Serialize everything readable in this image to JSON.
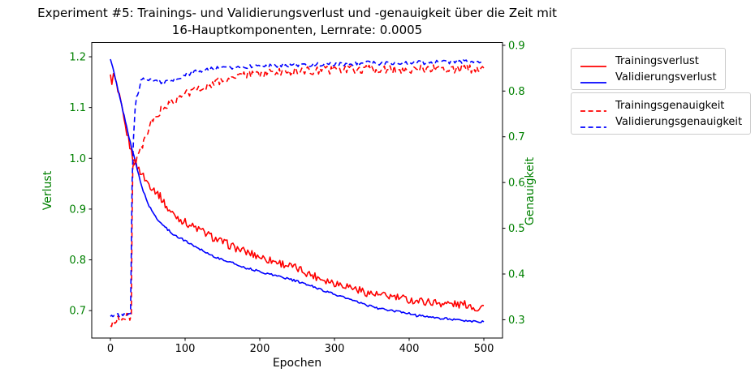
{
  "title": "Experiment #5: Trainings- und Validierungsverlust und -genauigkeit über die Zeit mit\n16-Hauptkomponenten, Lernrate: 0.0005",
  "chart_data": {
    "type": "line",
    "title": "Experiment #5: Trainings- und Validierungsverlust und -genauigkeit über die Zeit mit 16-Hauptkomponenten, Lernrate: 0.0005",
    "xlabel": "Epochen",
    "ylabel_left": "Verlust",
    "ylabel_right": "Genauigkeit",
    "axis_label_color": "#008000",
    "tick_color_x": "#000000",
    "legend_position": "outside-right",
    "grid": false,
    "x_ticks": [
      0,
      100,
      200,
      300,
      400,
      500
    ],
    "loss_ticks": [
      "1.2",
      "1.1",
      "1.0",
      "0.9",
      "0.8",
      "0.7"
    ],
    "acc_ticks": [
      "0.9",
      "0.8",
      "0.7",
      "0.6",
      "0.5",
      "0.4",
      "0.3"
    ],
    "xlim": [
      -25,
      525
    ],
    "loss_lim": [
      0.646,
      1.228
    ],
    "acc_lim": [
      0.26,
      0.906
    ],
    "series": [
      {
        "name": "Trainingsverlust",
        "color": "#ff0000",
        "dash": false,
        "axis": "loss",
        "noise": 0.008,
        "points": [
          [
            0,
            1.16
          ],
          [
            2,
            1.152
          ],
          [
            4,
            1.162
          ],
          [
            6,
            1.158
          ],
          [
            8,
            1.145
          ],
          [
            10,
            1.13
          ],
          [
            12,
            1.12
          ],
          [
            15,
            1.1
          ],
          [
            18,
            1.075
          ],
          [
            22,
            1.05
          ],
          [
            26,
            1.025
          ],
          [
            30,
            1.0
          ],
          [
            34,
            0.988
          ],
          [
            38,
            0.979
          ],
          [
            42,
            0.97
          ],
          [
            46,
            0.96
          ],
          [
            50,
            0.952
          ],
          [
            55,
            0.944
          ],
          [
            60,
            0.937
          ],
          [
            65,
            0.928
          ],
          [
            70,
            0.917
          ],
          [
            77,
            0.9
          ],
          [
            85,
            0.889
          ],
          [
            92,
            0.882
          ],
          [
            100,
            0.874
          ],
          [
            110,
            0.866
          ],
          [
            122,
            0.857
          ],
          [
            135,
            0.846
          ],
          [
            145,
            0.838
          ],
          [
            158,
            0.83
          ],
          [
            170,
            0.822
          ],
          [
            182,
            0.815
          ],
          [
            195,
            0.809
          ],
          [
            210,
            0.801
          ],
          [
            225,
            0.795
          ],
          [
            240,
            0.788
          ],
          [
            255,
            0.78
          ],
          [
            270,
            0.77
          ],
          [
            285,
            0.762
          ],
          [
            300,
            0.755
          ],
          [
            315,
            0.75
          ],
          [
            330,
            0.742
          ],
          [
            345,
            0.735
          ],
          [
            360,
            0.73
          ],
          [
            375,
            0.728
          ],
          [
            390,
            0.724
          ],
          [
            405,
            0.72
          ],
          [
            420,
            0.718
          ],
          [
            435,
            0.716
          ],
          [
            450,
            0.714
          ],
          [
            465,
            0.712
          ],
          [
            480,
            0.712
          ],
          [
            490,
            0.704
          ],
          [
            500,
            0.71
          ]
        ]
      },
      {
        "name": "Validierungsverlust",
        "color": "#0000ff",
        "dash": false,
        "axis": "loss",
        "noise": 0.002,
        "points": [
          [
            0,
            1.197
          ],
          [
            5,
            1.167
          ],
          [
            10,
            1.135
          ],
          [
            15,
            1.105
          ],
          [
            20,
            1.073
          ],
          [
            25,
            1.042
          ],
          [
            30,
            1.012
          ],
          [
            33,
            0.995
          ],
          [
            36,
            0.978
          ],
          [
            40,
            0.955
          ],
          [
            44,
            0.936
          ],
          [
            48,
            0.92
          ],
          [
            52,
            0.905
          ],
          [
            57,
            0.893
          ],
          [
            62,
            0.882
          ],
          [
            68,
            0.872
          ],
          [
            75,
            0.862
          ],
          [
            82,
            0.853
          ],
          [
            90,
            0.845
          ],
          [
            100,
            0.838
          ],
          [
            110,
            0.829
          ],
          [
            122,
            0.82
          ],
          [
            134,
            0.81
          ],
          [
            146,
            0.802
          ],
          [
            158,
            0.797
          ],
          [
            170,
            0.79
          ],
          [
            182,
            0.784
          ],
          [
            195,
            0.779
          ],
          [
            210,
            0.773
          ],
          [
            225,
            0.768
          ],
          [
            240,
            0.762
          ],
          [
            255,
            0.755
          ],
          [
            270,
            0.748
          ],
          [
            285,
            0.74
          ],
          [
            300,
            0.732
          ],
          [
            315,
            0.725
          ],
          [
            330,
            0.717
          ],
          [
            345,
            0.71
          ],
          [
            360,
            0.704
          ],
          [
            375,
            0.7
          ],
          [
            390,
            0.697
          ],
          [
            400,
            0.695
          ],
          [
            410,
            0.69
          ],
          [
            420,
            0.69
          ],
          [
            430,
            0.687
          ],
          [
            440,
            0.684
          ],
          [
            450,
            0.685
          ],
          [
            460,
            0.682
          ],
          [
            470,
            0.68
          ],
          [
            480,
            0.68
          ],
          [
            490,
            0.678
          ],
          [
            500,
            0.678
          ]
        ]
      },
      {
        "name": "Trainingsgenauigkeit",
        "color": "#ff0000",
        "dash": true,
        "axis": "acc",
        "noise": 0.009,
        "points": [
          [
            0,
            0.285
          ],
          [
            3,
            0.292
          ],
          [
            6,
            0.3
          ],
          [
            10,
            0.305
          ],
          [
            14,
            0.298
          ],
          [
            18,
            0.302
          ],
          [
            22,
            0.305
          ],
          [
            26,
            0.308
          ],
          [
            28,
            0.31
          ],
          [
            29,
            0.52
          ],
          [
            30,
            0.64
          ],
          [
            32,
            0.648
          ],
          [
            34,
            0.638
          ],
          [
            36,
            0.652
          ],
          [
            38,
            0.66
          ],
          [
            40,
            0.668
          ],
          [
            43,
            0.678
          ],
          [
            46,
            0.692
          ],
          [
            50,
            0.71
          ],
          [
            53,
            0.728
          ],
          [
            57,
            0.735
          ],
          [
            61,
            0.742
          ],
          [
            66,
            0.755
          ],
          [
            71,
            0.764
          ],
          [
            76,
            0.768
          ],
          [
            82,
            0.772
          ],
          [
            88,
            0.78
          ],
          [
            95,
            0.788
          ],
          [
            102,
            0.795
          ],
          [
            110,
            0.8
          ],
          [
            118,
            0.806
          ],
          [
            126,
            0.81
          ],
          [
            135,
            0.815
          ],
          [
            144,
            0.82
          ],
          [
            154,
            0.826
          ],
          [
            164,
            0.83
          ],
          [
            175,
            0.833
          ],
          [
            188,
            0.836
          ],
          [
            200,
            0.838
          ],
          [
            215,
            0.84
          ],
          [
            230,
            0.842
          ],
          [
            245,
            0.843
          ],
          [
            260,
            0.845
          ],
          [
            275,
            0.844
          ],
          [
            290,
            0.846
          ],
          [
            305,
            0.847
          ],
          [
            320,
            0.846
          ],
          [
            335,
            0.848
          ],
          [
            350,
            0.847
          ],
          [
            365,
            0.846
          ],
          [
            380,
            0.848
          ],
          [
            395,
            0.847
          ],
          [
            410,
            0.849
          ],
          [
            425,
            0.848
          ],
          [
            440,
            0.85
          ],
          [
            455,
            0.848
          ],
          [
            470,
            0.849
          ],
          [
            485,
            0.848
          ],
          [
            500,
            0.85
          ]
        ]
      },
      {
        "name": "Validierungsgenauigkeit",
        "color": "#0000ff",
        "dash": true,
        "axis": "acc",
        "noise": 0.004,
        "points": [
          [
            0,
            0.31
          ],
          [
            5,
            0.31
          ],
          [
            10,
            0.31
          ],
          [
            15,
            0.31
          ],
          [
            20,
            0.31
          ],
          [
            24,
            0.31
          ],
          [
            27,
            0.312
          ],
          [
            28,
            0.45
          ],
          [
            29,
            0.6
          ],
          [
            31,
            0.7
          ],
          [
            33,
            0.76
          ],
          [
            35,
            0.79
          ],
          [
            38,
            0.8
          ],
          [
            41,
            0.828
          ],
          [
            44,
            0.827
          ],
          [
            48,
            0.822
          ],
          [
            53,
            0.824
          ],
          [
            58,
            0.823
          ],
          [
            64,
            0.822
          ],
          [
            70,
            0.818
          ],
          [
            76,
            0.82
          ],
          [
            82,
            0.822
          ],
          [
            88,
            0.825
          ],
          [
            95,
            0.83
          ],
          [
            102,
            0.836
          ],
          [
            110,
            0.84
          ],
          [
            118,
            0.844
          ],
          [
            126,
            0.846
          ],
          [
            135,
            0.848
          ],
          [
            145,
            0.85
          ],
          [
            155,
            0.85
          ],
          [
            165,
            0.852
          ],
          [
            175,
            0.855
          ],
          [
            185,
            0.853
          ],
          [
            195,
            0.855
          ],
          [
            210,
            0.855
          ],
          [
            225,
            0.856
          ],
          [
            240,
            0.857
          ],
          [
            255,
            0.856
          ],
          [
            270,
            0.858
          ],
          [
            285,
            0.858
          ],
          [
            300,
            0.859
          ],
          [
            315,
            0.858
          ],
          [
            330,
            0.86
          ],
          [
            345,
            0.862
          ],
          [
            360,
            0.86
          ],
          [
            375,
            0.862
          ],
          [
            390,
            0.861
          ],
          [
            405,
            0.863
          ],
          [
            420,
            0.862
          ],
          [
            435,
            0.864
          ],
          [
            450,
            0.863
          ],
          [
            465,
            0.865
          ],
          [
            480,
            0.864
          ],
          [
            500,
            0.866
          ]
        ]
      }
    ]
  }
}
